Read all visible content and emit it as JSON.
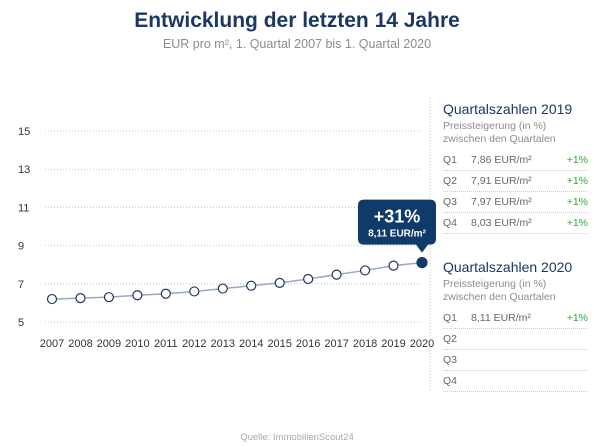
{
  "header": {
    "title": "Entwicklung der letzten 14 Jahre",
    "subtitle": "EUR pro m², 1. Quartal 2007 bis 1. Quartal 2020"
  },
  "chart_data": {
    "type": "line",
    "title": "Entwicklung der letzten 14 Jahre",
    "subtitle": "EUR pro m², 1. Quartal 2007 bis 1. Quartal 2020",
    "x": [
      "2007",
      "2008",
      "2009",
      "2010",
      "2011",
      "2012",
      "2013",
      "2014",
      "2015",
      "2016",
      "2017",
      "2018",
      "2019",
      "2020"
    ],
    "values": [
      6.2,
      6.25,
      6.3,
      6.4,
      6.48,
      6.6,
      6.75,
      6.9,
      7.05,
      7.25,
      7.48,
      7.7,
      7.95,
      8.11
    ],
    "ylim": [
      5,
      15
    ],
    "yticks": [
      5,
      7,
      9,
      11,
      13,
      15
    ],
    "grid": true,
    "colors": {
      "line": "#9aa8bd",
      "marker_fill": "#ffffff",
      "marker_stroke": "#1b3764",
      "highlight": "#103a6a"
    },
    "annotation": {
      "pct": "+31%",
      "value": "8,11 EUR/m²"
    }
  },
  "panels": [
    {
      "title": "Quartalszahlen 2019",
      "subtitle_line1": "Preissteigerung (in %)",
      "subtitle_line2": "zwischen den Quartalen",
      "rows": [
        {
          "q": "Q1",
          "value": "7,86 EUR/m²",
          "delta": "+1%"
        },
        {
          "q": "Q2",
          "value": "7,91 EUR/m²",
          "delta": "+1%"
        },
        {
          "q": "Q3",
          "value": "7,97 EUR/m²",
          "delta": "+1%"
        },
        {
          "q": "Q4",
          "value": "8,03 EUR/m²",
          "delta": "+1%"
        }
      ]
    },
    {
      "title": "Quartalszahlen 2020",
      "subtitle_line1": "Preissteigerung (in %)",
      "subtitle_line2": "zwischen den Quartalen",
      "rows": [
        {
          "q": "Q1",
          "value": "8,11 EUR/m²",
          "delta": "+1%"
        },
        {
          "q": "Q2",
          "value": "",
          "delta": ""
        },
        {
          "q": "Q3",
          "value": "",
          "delta": ""
        },
        {
          "q": "Q4",
          "value": "",
          "delta": ""
        }
      ]
    }
  ],
  "footer": {
    "source": "Quelle: ImmobilienScout24"
  }
}
